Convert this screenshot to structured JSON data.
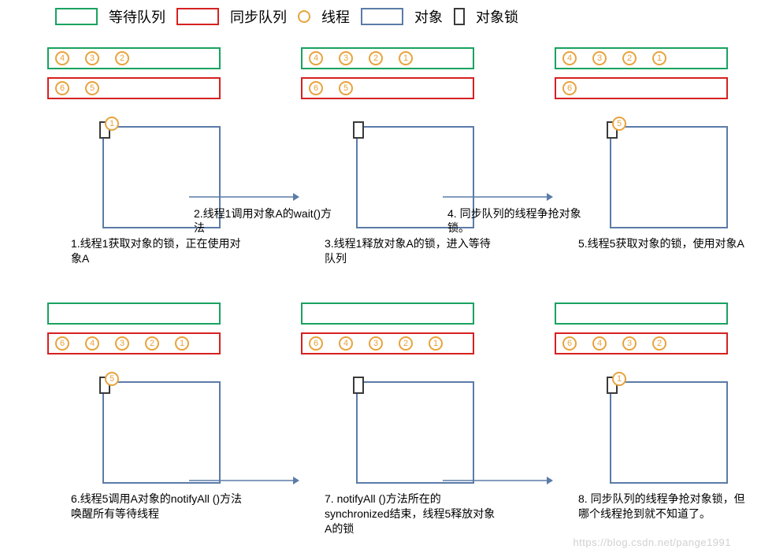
{
  "colors": {
    "wait_queue": "#1aa260",
    "sync_queue": "#d62121",
    "thread": "#e8a33d",
    "object": "#5b7ba8",
    "lock": "#3a3a3a",
    "text": "#222222",
    "bg": "#ffffff"
  },
  "font": {
    "legend_size": 18,
    "caption_size": 14,
    "thread_num_size": 11
  },
  "legend": {
    "wait_queue": "等待队列",
    "sync_queue": "同步队列",
    "thread": "线程",
    "object": "对象",
    "lock": "对象锁"
  },
  "panels": [
    {
      "wait_queue": [
        4,
        3,
        2
      ],
      "sync_queue": [
        6,
        5
      ],
      "locked_thread": 1,
      "caption": "1.线程1获取对象的锁，正在使用对象A",
      "arrow_label": "2.线程1调用对象A的wait()方法"
    },
    {
      "wait_queue": [
        4,
        3,
        2,
        1
      ],
      "sync_queue": [
        6,
        5
      ],
      "locked_thread": null,
      "caption": "3.线程1释放对象A的锁，进入等待队列",
      "arrow_label": "4. 同步队列的线程争抢对象锁。"
    },
    {
      "wait_queue": [
        4,
        3,
        2,
        1
      ],
      "sync_queue": [
        6
      ],
      "locked_thread": 5,
      "caption": "5.线程5获取对象的锁，使用对象A",
      "arrow_label": null
    },
    {
      "wait_queue": [],
      "sync_queue": [
        6,
        4,
        3,
        2,
        1
      ],
      "locked_thread": 5,
      "caption": "6.线程5调用A对象的notifyAll ()方法唤醒所有等待线程",
      "arrow_label": ""
    },
    {
      "wait_queue": [],
      "sync_queue": [
        6,
        4,
        3,
        2,
        1
      ],
      "locked_thread": null,
      "caption": "7. notifyAll ()方法所在的synchronized结束，线程5释放对象A的锁",
      "arrow_label": ""
    },
    {
      "wait_queue": [],
      "sync_queue": [
        6,
        4,
        3,
        2
      ],
      "locked_thread": 1,
      "caption": "8. 同步队列的线程争抢对象锁，但哪个线程抢到就不知道了。",
      "arrow_label": null
    }
  ],
  "watermark": "https://blog.csdn.net/pange1991"
}
